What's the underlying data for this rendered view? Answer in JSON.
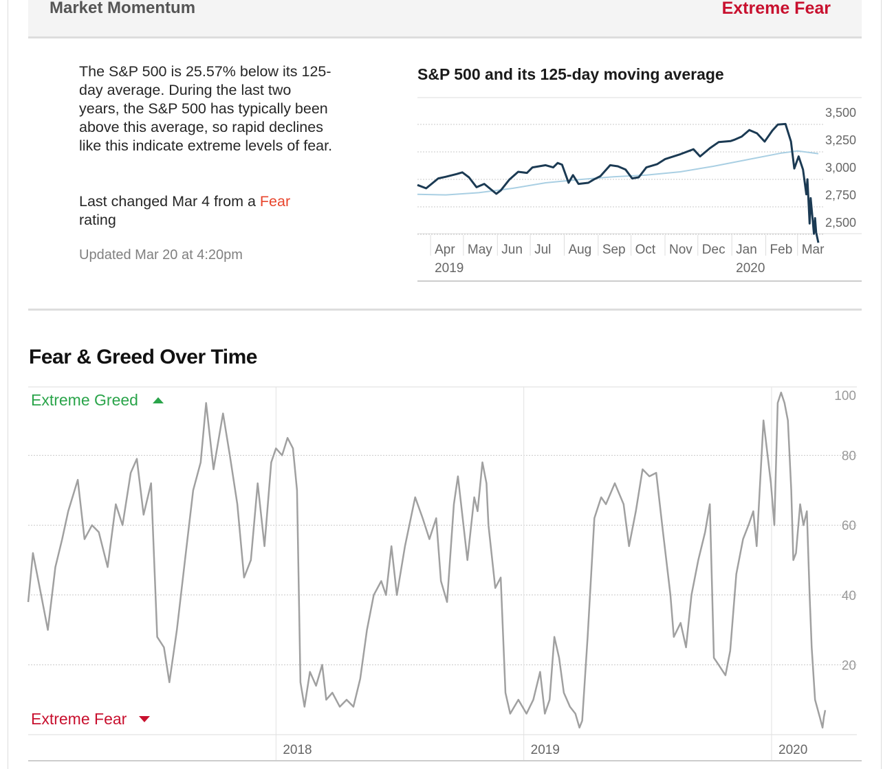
{
  "header": {
    "title": "Market Momentum",
    "rating": "Extreme Fear",
    "rating_color": "#c8102e"
  },
  "description": "The S&P 500 is 25.57% below its 125-day average. During the last two years, the S&P 500 has typically been above this average, so rapid declines like this indicate extreme levels of fear.",
  "last_changed": {
    "prefix": "Last changed Mar 4 from a ",
    "previous_rating": "Fear",
    "suffix": "rating"
  },
  "updated": "Updated Mar 20 at 4:20pm",
  "fear_greed_title": "Fear & Greed Over Time",
  "chart_data": [
    {
      "type": "line",
      "title": "S&P 500 and its 125-day moving average",
      "x_tick_labels": [
        "Apr",
        "May",
        "Jun",
        "Jul",
        "Aug",
        "Sep",
        "Oct",
        "Nov",
        "Dec",
        "Jan",
        "Feb",
        "Mar"
      ],
      "x_year_labels": [
        "2019",
        "2020"
      ],
      "y_tick_labels": [
        "3,500",
        "3,250",
        "3,000",
        "2,750",
        "2,500"
      ],
      "y_ticks": [
        3500,
        3250,
        3000,
        2750,
        2500
      ],
      "ylim": [
        2450,
        3620
      ],
      "x_range": [
        "2019-03-20",
        "2020-03-20"
      ],
      "series": [
        {
          "color": "#1b3a53",
          "points": [
            [
              "2019-03-20",
              2830
            ],
            [
              "2019-03-28",
              2800
            ],
            [
              "2019-04-08",
              2890
            ],
            [
              "2019-04-15",
              2905
            ],
            [
              "2019-04-25",
              2930
            ],
            [
              "2019-04-30",
              2945
            ],
            [
              "2019-05-06",
              2900
            ],
            [
              "2019-05-13",
              2810
            ],
            [
              "2019-05-20",
              2840
            ],
            [
              "2019-05-31",
              2750
            ],
            [
              "2019-06-04",
              2780
            ],
            [
              "2019-06-12",
              2880
            ],
            [
              "2019-06-20",
              2950
            ],
            [
              "2019-06-28",
              2940
            ],
            [
              "2019-07-03",
              2990
            ],
            [
              "2019-07-15",
              3010
            ],
            [
              "2019-07-22",
              2990
            ],
            [
              "2019-07-26",
              3030
            ],
            [
              "2019-07-30",
              3015
            ],
            [
              "2019-08-05",
              2850
            ],
            [
              "2019-08-09",
              2920
            ],
            [
              "2019-08-14",
              2840
            ],
            [
              "2019-08-23",
              2850
            ],
            [
              "2019-08-28",
              2880
            ],
            [
              "2019-09-03",
              2910
            ],
            [
              "2019-09-12",
              3010
            ],
            [
              "2019-09-19",
              3000
            ],
            [
              "2019-09-26",
              2970
            ],
            [
              "2019-10-02",
              2890
            ],
            [
              "2019-10-08",
              2900
            ],
            [
              "2019-10-15",
              2990
            ],
            [
              "2019-10-25",
              3020
            ],
            [
              "2019-11-01",
              3065
            ],
            [
              "2019-11-15",
              3110
            ],
            [
              "2019-11-27",
              3155
            ],
            [
              "2019-12-03",
              3090
            ],
            [
              "2019-12-12",
              3165
            ],
            [
              "2019-12-20",
              3220
            ],
            [
              "2019-12-31",
              3230
            ],
            [
              "2020-01-03",
              3240
            ],
            [
              "2020-01-10",
              3270
            ],
            [
              "2020-01-17",
              3330
            ],
            [
              "2020-01-24",
              3300
            ],
            [
              "2020-01-31",
              3225
            ],
            [
              "2020-02-07",
              3325
            ],
            [
              "2020-02-12",
              3380
            ],
            [
              "2020-02-19",
              3385
            ],
            [
              "2020-02-24",
              3225
            ],
            [
              "2020-02-27",
              2980
            ],
            [
              "2020-03-02",
              3090
            ],
            [
              "2020-03-06",
              2970
            ],
            [
              "2020-03-09",
              2745
            ],
            [
              "2020-03-10",
              2882
            ],
            [
              "2020-03-12",
              2480
            ],
            [
              "2020-03-13",
              2711
            ],
            [
              "2020-03-16",
              2386
            ],
            [
              "2020-03-17",
              2529
            ],
            [
              "2020-03-18",
              2398
            ],
            [
              "2020-03-20",
              2305
            ]
          ]
        },
        {
          "color": "#a9cfe3",
          "points": [
            [
              "2019-03-20",
              2745
            ],
            [
              "2019-04-15",
              2740
            ],
            [
              "2019-05-15",
              2760
            ],
            [
              "2019-06-15",
              2800
            ],
            [
              "2019-07-15",
              2850
            ],
            [
              "2019-08-15",
              2880
            ],
            [
              "2019-09-15",
              2905
            ],
            [
              "2019-10-15",
              2920
            ],
            [
              "2019-11-15",
              2950
            ],
            [
              "2019-12-15",
              3000
            ],
            [
              "2020-01-15",
              3060
            ],
            [
              "2020-02-15",
              3120
            ],
            [
              "2020-03-01",
              3140
            ],
            [
              "2020-03-20",
              3115
            ]
          ]
        }
      ]
    },
    {
      "type": "line",
      "x_tick_labels": [
        "2018",
        "2019",
        "2020"
      ],
      "y_tick_labels": [
        "100",
        "80",
        "60",
        "40",
        "20"
      ],
      "y_ticks": [
        100,
        80,
        60,
        40,
        20
      ],
      "ylim": [
        0,
        104
      ],
      "x_range": [
        "2017-01-01",
        "2020-03-20"
      ],
      "band_labels": {
        "top": "Extreme Greed",
        "bottom": "Extreme Fear",
        "top_color": "#2aa44a",
        "bottom_color": "#c8102e"
      },
      "series": [
        {
          "color": "#a0a0a0",
          "points": [
            [
              "2017-01-01",
              38
            ],
            [
              "2017-01-08",
              52
            ],
            [
              "2017-01-20",
              40
            ],
            [
              "2017-01-30",
              30
            ],
            [
              "2017-02-10",
              48
            ],
            [
              "2017-02-20",
              56
            ],
            [
              "2017-03-01",
              64
            ],
            [
              "2017-03-15",
              73
            ],
            [
              "2017-03-25",
              56
            ],
            [
              "2017-04-05",
              60
            ],
            [
              "2017-04-15",
              58
            ],
            [
              "2017-04-28",
              48
            ],
            [
              "2017-05-10",
              66
            ],
            [
              "2017-05-20",
              60
            ],
            [
              "2017-06-01",
              75
            ],
            [
              "2017-06-10",
              79
            ],
            [
              "2017-06-20",
              63
            ],
            [
              "2017-07-01",
              72
            ],
            [
              "2017-07-10",
              28
            ],
            [
              "2017-07-20",
              25
            ],
            [
              "2017-07-28",
              15
            ],
            [
              "2017-08-08",
              30
            ],
            [
              "2017-08-20",
              50
            ],
            [
              "2017-09-01",
              70
            ],
            [
              "2017-09-12",
              78
            ],
            [
              "2017-09-20",
              95
            ],
            [
              "2017-10-01",
              76
            ],
            [
              "2017-10-15",
              92
            ],
            [
              "2017-10-25",
              80
            ],
            [
              "2017-11-05",
              66
            ],
            [
              "2017-11-15",
              45
            ],
            [
              "2017-11-25",
              50
            ],
            [
              "2017-12-05",
              72
            ],
            [
              "2017-12-15",
              54
            ],
            [
              "2017-12-25",
              78
            ],
            [
              "2018-01-01",
              82
            ],
            [
              "2018-01-10",
              80
            ],
            [
              "2018-01-18",
              85
            ],
            [
              "2018-01-26",
              82
            ],
            [
              "2018-02-01",
              70
            ],
            [
              "2018-02-06",
              15
            ],
            [
              "2018-02-12",
              8
            ],
            [
              "2018-02-20",
              18
            ],
            [
              "2018-03-01",
              14
            ],
            [
              "2018-03-10",
              20
            ],
            [
              "2018-03-16",
              10
            ],
            [
              "2018-03-25",
              12
            ],
            [
              "2018-04-05",
              8
            ],
            [
              "2018-04-15",
              10
            ],
            [
              "2018-04-25",
              8
            ],
            [
              "2018-05-05",
              16
            ],
            [
              "2018-05-15",
              30
            ],
            [
              "2018-05-25",
              40
            ],
            [
              "2018-06-05",
              44
            ],
            [
              "2018-06-12",
              40
            ],
            [
              "2018-06-20",
              54
            ],
            [
              "2018-06-28",
              40
            ],
            [
              "2018-07-10",
              54
            ],
            [
              "2018-07-25",
              68
            ],
            [
              "2018-08-05",
              62
            ],
            [
              "2018-08-15",
              56
            ],
            [
              "2018-08-25",
              62
            ],
            [
              "2018-09-01",
              44
            ],
            [
              "2018-09-10",
              38
            ],
            [
              "2018-09-20",
              66
            ],
            [
              "2018-09-26",
              74
            ],
            [
              "2018-10-03",
              62
            ],
            [
              "2018-10-10",
              50
            ],
            [
              "2018-10-20",
              68
            ],
            [
              "2018-10-25",
              64
            ],
            [
              "2018-11-01",
              78
            ],
            [
              "2018-11-07",
              72
            ],
            [
              "2018-11-10",
              60
            ],
            [
              "2018-11-20",
              42
            ],
            [
              "2018-11-28",
              45
            ],
            [
              "2018-12-05",
              12
            ],
            [
              "2018-12-12",
              6
            ],
            [
              "2018-12-24",
              10
            ],
            [
              "2019-01-05",
              6
            ],
            [
              "2019-01-15",
              10
            ],
            [
              "2019-01-25",
              18
            ],
            [
              "2019-02-01",
              6
            ],
            [
              "2019-02-08",
              10
            ],
            [
              "2019-02-15",
              28
            ],
            [
              "2019-02-22",
              22
            ],
            [
              "2019-03-01",
              12
            ],
            [
              "2019-03-10",
              8
            ],
            [
              "2019-03-18",
              6
            ],
            [
              "2019-03-24",
              2
            ],
            [
              "2019-03-28",
              4
            ],
            [
              "2019-04-05",
              28
            ],
            [
              "2019-04-15",
              62
            ],
            [
              "2019-04-25",
              68
            ],
            [
              "2019-05-02",
              66
            ],
            [
              "2019-05-15",
              72
            ],
            [
              "2019-05-28",
              66
            ],
            [
              "2019-06-05",
              54
            ],
            [
              "2019-06-15",
              64
            ],
            [
              "2019-06-25",
              76
            ],
            [
              "2019-07-05",
              74
            ],
            [
              "2019-07-15",
              75
            ],
            [
              "2019-07-25",
              58
            ],
            [
              "2019-08-05",
              40
            ],
            [
              "2019-08-10",
              28
            ],
            [
              "2019-08-20",
              32
            ],
            [
              "2019-08-28",
              25
            ],
            [
              "2019-09-05",
              40
            ],
            [
              "2019-09-15",
              50
            ],
            [
              "2019-09-25",
              58
            ],
            [
              "2019-10-02",
              66
            ],
            [
              "2019-10-08",
              22
            ],
            [
              "2019-10-15",
              20
            ],
            [
              "2019-10-25",
              17
            ],
            [
              "2019-11-01",
              24
            ],
            [
              "2019-11-10",
              46
            ],
            [
              "2019-11-20",
              56
            ],
            [
              "2019-11-28",
              60
            ],
            [
              "2019-12-05",
              64
            ],
            [
              "2019-12-10",
              54
            ],
            [
              "2019-12-20",
              90
            ],
            [
              "2019-12-31",
              72
            ],
            [
              "2020-01-05",
              60
            ],
            [
              "2020-01-10",
              95
            ],
            [
              "2020-01-15",
              98
            ],
            [
              "2020-01-20",
              95
            ],
            [
              "2020-01-25",
              90
            ],
            [
              "2020-01-30",
              70
            ],
            [
              "2020-02-02",
              50
            ],
            [
              "2020-02-06",
              52
            ],
            [
              "2020-02-12",
              66
            ],
            [
              "2020-02-17",
              60
            ],
            [
              "2020-02-22",
              64
            ],
            [
              "2020-02-26",
              40
            ],
            [
              "2020-02-29",
              25
            ],
            [
              "2020-03-05",
              10
            ],
            [
              "2020-03-12",
              5
            ],
            [
              "2020-03-16",
              2
            ],
            [
              "2020-03-18",
              5
            ],
            [
              "2020-03-20",
              7
            ]
          ]
        }
      ]
    }
  ]
}
